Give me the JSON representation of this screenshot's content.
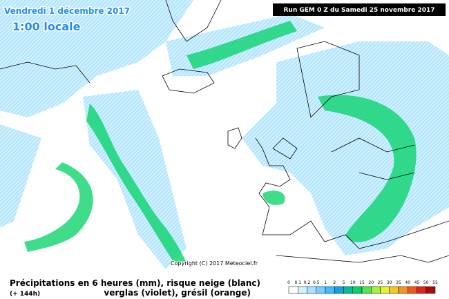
{
  "header": {
    "date": "Vendredi 1 décembre 2017",
    "time": "1:00 locale",
    "run": "Run GEM 0 Z du Samedi 25 novembre 2017"
  },
  "copyright": "Copyright (C) 2017 Meteociel.fr",
  "footer": {
    "line1": "Précipitations en 6 heures (mm), risque neige (blanc)",
    "lead": "(+ 144h)",
    "line2": "verglas (violet), grésil (orange)"
  },
  "legend": {
    "ticks": [
      0,
      0.1,
      0.2,
      0.5,
      1,
      2,
      5,
      10,
      15,
      20,
      25,
      30,
      35,
      40,
      45,
      50,
      55
    ],
    "colors": [
      "#ffffff",
      "#d2f0ff",
      "#aae1ff",
      "#78cdff",
      "#46b9ff",
      "#14a0e6",
      "#00be96",
      "#00d264",
      "#50e650",
      "#a0f03c",
      "#e6f032",
      "#f0c828",
      "#f09628",
      "#f05a1e",
      "#dc2814",
      "#aa0a0a"
    ]
  }
}
